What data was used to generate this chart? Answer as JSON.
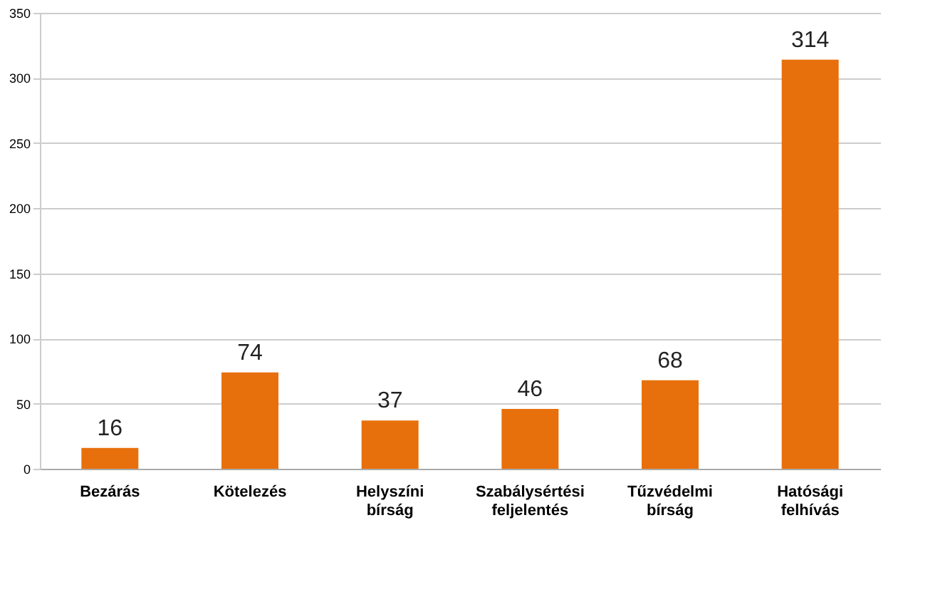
{
  "chart_data": {
    "type": "bar",
    "categories": [
      "Bezárás",
      "Kötelezés",
      "Helyszíni bírság",
      "Szabálysértési feljelentés",
      "Tűzvédelmi bírság",
      "Hatósági felhívás"
    ],
    "values": [
      16,
      74,
      37,
      46,
      68,
      314
    ],
    "color": "#e8700c",
    "data_labels": true,
    "ylim": [
      0,
      350
    ],
    "yticks": [
      0,
      50,
      100,
      150,
      200,
      250,
      300,
      350
    ],
    "grid": "y"
  }
}
